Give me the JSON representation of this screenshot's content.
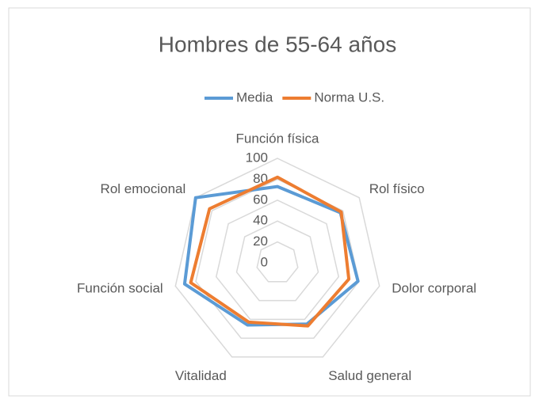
{
  "chart_data": {
    "type": "radar",
    "title": "Hombres de 55-64 años",
    "categories": [
      "Función física",
      "Rol físico",
      "Dolor corporal",
      "Salud general",
      "Vitalidad",
      "Función social",
      "Rol emocional"
    ],
    "series": [
      {
        "name": "Media",
        "color": "#5b9bd5",
        "values": [
          73,
          77,
          79,
          65,
          66,
          91,
          100
        ]
      },
      {
        "name": "Norma U.S.",
        "color": "#ed7d31",
        "values": [
          82,
          78,
          70,
          67,
          63,
          85,
          83
        ]
      }
    ],
    "ylim": [
      0,
      100
    ],
    "yticks": [
      0,
      20,
      40,
      60,
      80,
      100
    ],
    "grid": true,
    "legend": "top"
  }
}
